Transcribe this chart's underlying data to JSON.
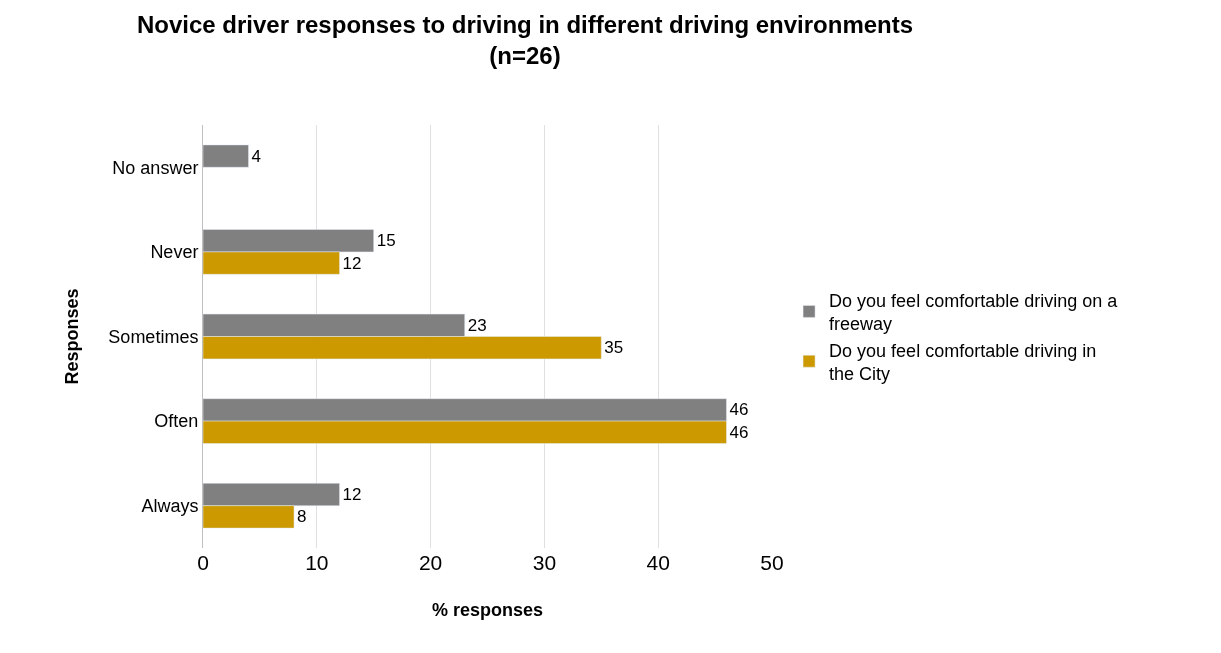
{
  "chart_data": {
    "type": "bar",
    "orientation": "horizontal",
    "title": "Novice driver responses to driving in different driving environments (n=26)",
    "xlabel": "% responses",
    "ylabel": "Responses",
    "categories": [
      "No answer",
      "Never",
      "Sometimes",
      "Often",
      "Always"
    ],
    "series": [
      {
        "name": "Do you feel comfortable driving on a freeway",
        "color": "#808080",
        "values": [
          4,
          15,
          23,
          46,
          12
        ]
      },
      {
        "name": "Do you feel comfortable driving in the City",
        "color": "#cc9a00",
        "values": [
          null,
          12,
          35,
          46,
          8
        ]
      }
    ],
    "xlim": [
      0,
      50
    ],
    "xticks": [
      0,
      10,
      20,
      30,
      40,
      50
    ],
    "grid": "x",
    "legend": "right",
    "data_labels": true
  }
}
